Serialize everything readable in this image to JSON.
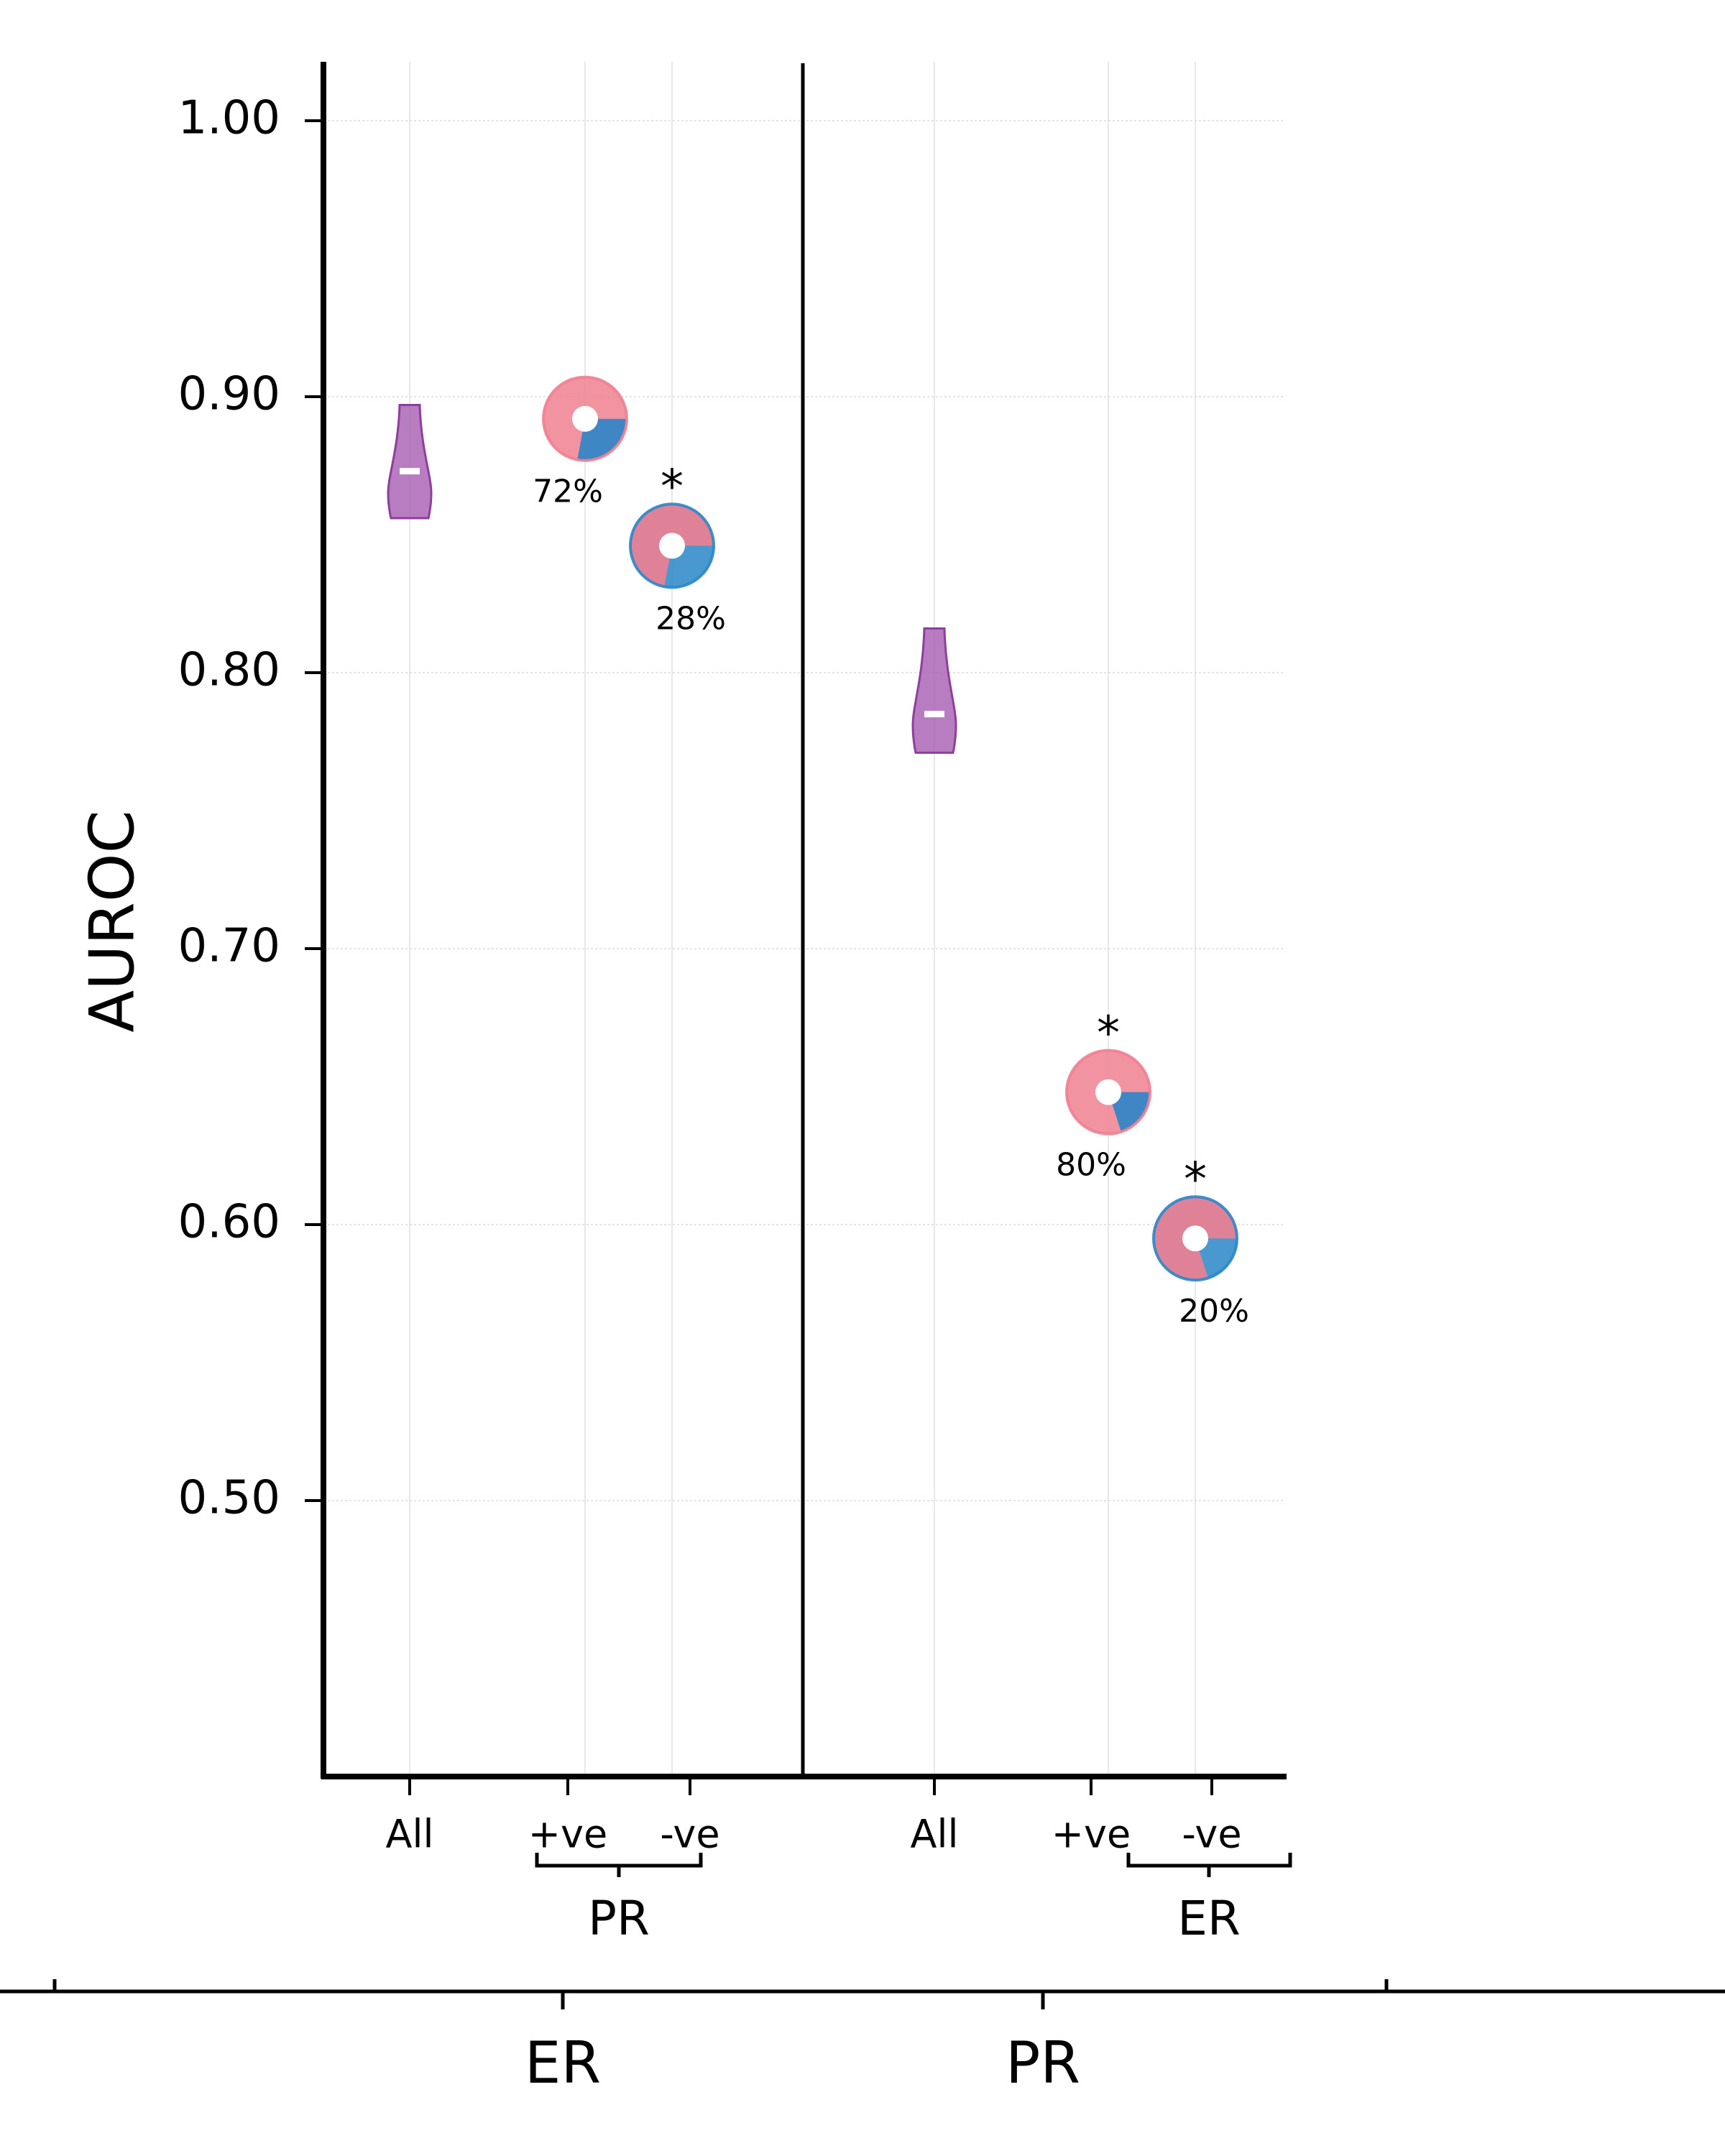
{
  "chart_data": {
    "type": "scatter",
    "ylabel": "AUROC",
    "ylim": [
      0.4,
      1.02
    ],
    "yticks": [
      1.0,
      0.9,
      0.8,
      0.7,
      0.6,
      0.5
    ],
    "ytick_labels": [
      "1.00",
      "0.90",
      "0.80",
      "0.70",
      "0.60",
      "0.50"
    ],
    "grid": true,
    "panels": [
      {
        "name": "ER",
        "subgroup_label": "PR",
        "categories": [
          "All",
          "+ve",
          "-ve"
        ],
        "violin": {
          "category": "All",
          "median": 0.873,
          "min": 0.856,
          "max": 0.897
        },
        "points": [
          {
            "category": "+ve",
            "value": 0.892,
            "share": 0.72,
            "share_label": "72%",
            "significant": false
          },
          {
            "category": "-ve",
            "value": 0.846,
            "share": 0.28,
            "share_label": "28%",
            "significant": true
          }
        ]
      },
      {
        "name": "PR",
        "subgroup_label": "ER",
        "categories": [
          "All",
          "+ve",
          "-ve"
        ],
        "violin": {
          "category": "All",
          "median": 0.785,
          "min": 0.771,
          "max": 0.816
        },
        "points": [
          {
            "category": "+ve",
            "value": 0.648,
            "share": 0.8,
            "share_label": "80%",
            "significant": true
          },
          {
            "category": "-ve",
            "value": 0.595,
            "share": 0.2,
            "share_label": "20%",
            "significant": true
          }
        ]
      }
    ],
    "significance_marker": "*",
    "colors": {
      "violin": "#a55db0",
      "positive": "#f08090",
      "negative": "#2a86c8"
    }
  }
}
